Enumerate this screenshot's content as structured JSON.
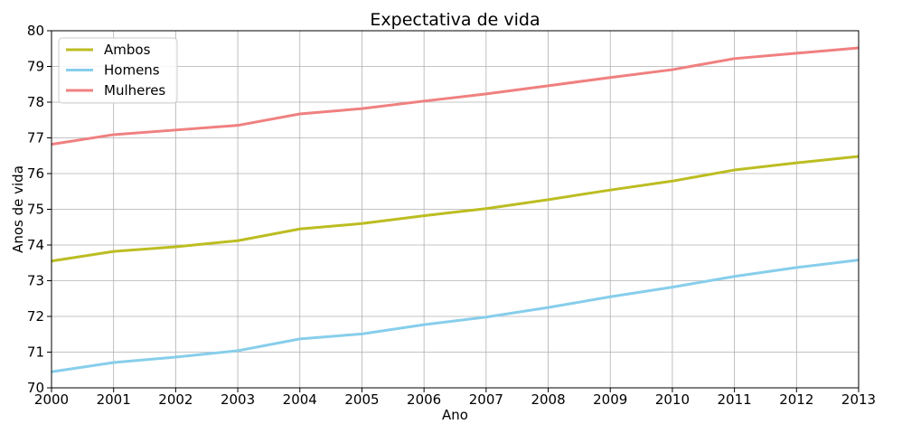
{
  "chart_data": {
    "type": "line",
    "title": "Expectativa de vida",
    "xlabel": "Ano",
    "ylabel": "Anos de vida",
    "x": [
      2000,
      2001,
      2002,
      2003,
      2004,
      2005,
      2006,
      2007,
      2008,
      2009,
      2010,
      2011,
      2012,
      2013
    ],
    "xlim": [
      2000,
      2013
    ],
    "ylim": [
      70,
      80
    ],
    "x_ticks": [
      "2000",
      "2001",
      "2002",
      "2003",
      "2004",
      "2005",
      "2006",
      "2007",
      "2008",
      "2009",
      "2010",
      "2011",
      "2012",
      "2013"
    ],
    "y_ticks": [
      "70",
      "71",
      "72",
      "73",
      "74",
      "75",
      "76",
      "77",
      "78",
      "79",
      "80"
    ],
    "grid": true,
    "legend_position": "top-left",
    "series": [
      {
        "name": "Ambos",
        "color": "#bcbd22",
        "values": [
          73.55,
          73.82,
          73.95,
          74.12,
          74.45,
          74.6,
          74.82,
          75.02,
          75.27,
          75.54,
          75.79,
          76.1,
          76.3,
          76.48
        ]
      },
      {
        "name": "Homens",
        "color": "#87ceeb",
        "values": [
          70.45,
          70.71,
          70.86,
          71.04,
          71.37,
          71.51,
          71.77,
          71.98,
          72.25,
          72.55,
          72.82,
          73.12,
          73.37,
          73.58
        ]
      },
      {
        "name": "Mulheres",
        "color": "#f08080",
        "values": [
          76.82,
          77.09,
          77.22,
          77.35,
          77.67,
          77.82,
          78.03,
          78.23,
          78.46,
          78.69,
          78.91,
          79.22,
          79.37,
          79.52
        ]
      }
    ]
  }
}
